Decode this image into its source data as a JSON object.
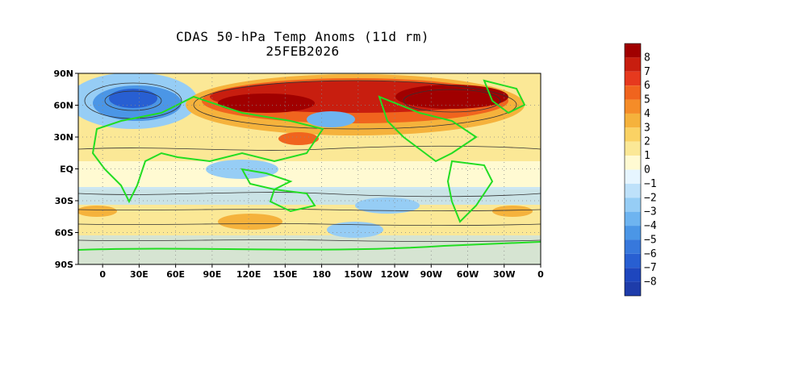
{
  "title": {
    "line1": "CDAS 50-hPa Temp Anoms (11d rm)",
    "line2": "25FEB2026"
  },
  "map": {
    "lat_labels": [
      "90N",
      "60N",
      "30N",
      "EQ",
      "30S",
      "60S",
      "90S"
    ],
    "lon_labels": [
      "0",
      "30E",
      "60E",
      "90E",
      "120E",
      "150E",
      "180",
      "150W",
      "120W",
      "90W",
      "60W",
      "30W",
      "0"
    ],
    "lon_values": [
      0,
      30,
      60,
      90,
      120,
      150,
      180,
      210,
      240,
      270,
      300,
      330,
      360
    ],
    "lat_values": [
      90,
      60,
      30,
      0,
      -30,
      -60,
      -90
    ],
    "lon_range": [
      -20,
      360
    ],
    "lat_range": [
      -90,
      90
    ],
    "coastline_color": "#22dd22",
    "contour_color": "#333333",
    "grid_style": "dotted"
  },
  "colorbar": {
    "labels": [
      "8",
      "7",
      "6",
      "5",
      "4",
      "3",
      "2",
      "1",
      "0",
      "-1",
      "-2",
      "-3",
      "-4",
      "-5",
      "-6",
      "-7",
      "-8"
    ],
    "colors": [
      "#a00000",
      "#c81e0f",
      "#e6391e",
      "#f0641e",
      "#f58c28",
      "#f5b23c",
      "#fad264",
      "#fbe896",
      "#fffad2",
      "#e6f5ff",
      "#bee1fa",
      "#96cdf5",
      "#6eb4f0",
      "#4b96e6",
      "#3778dc",
      "#285fd2",
      "#1e46be",
      "#1e3caa"
    ]
  }
}
